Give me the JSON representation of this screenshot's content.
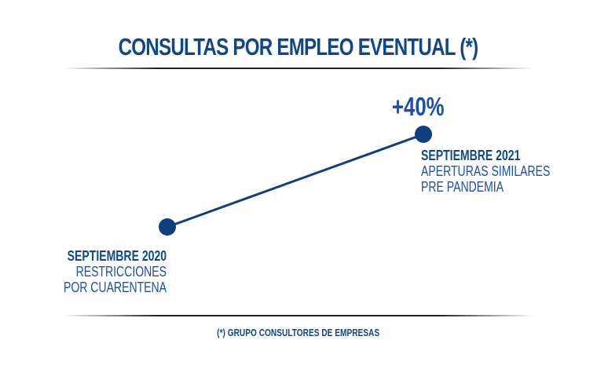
{
  "chart_data": {
    "type": "line",
    "title": "CONSULTAS POR EMPLEO EVENTUAL (*)",
    "change_label": "+40%",
    "points": [
      {
        "date": "SEPTIEMBRE 2020",
        "description": [
          "RESTRICCIONES",
          "POR CUARENTENA"
        ],
        "relative_value": 100
      },
      {
        "date": "SEPTIEMBRE 2021",
        "description": [
          "APERTURAS SIMILARES",
          "PRE PANDEMIA"
        ],
        "relative_value": 140
      }
    ],
    "footnote": "(*) GRUPO CONSULTORES DE EMPRESAS",
    "colors": {
      "line": "#0f3f7e",
      "point": "#0f3f7e",
      "title": "#0f4788",
      "text": "#1a4fb0"
    }
  }
}
